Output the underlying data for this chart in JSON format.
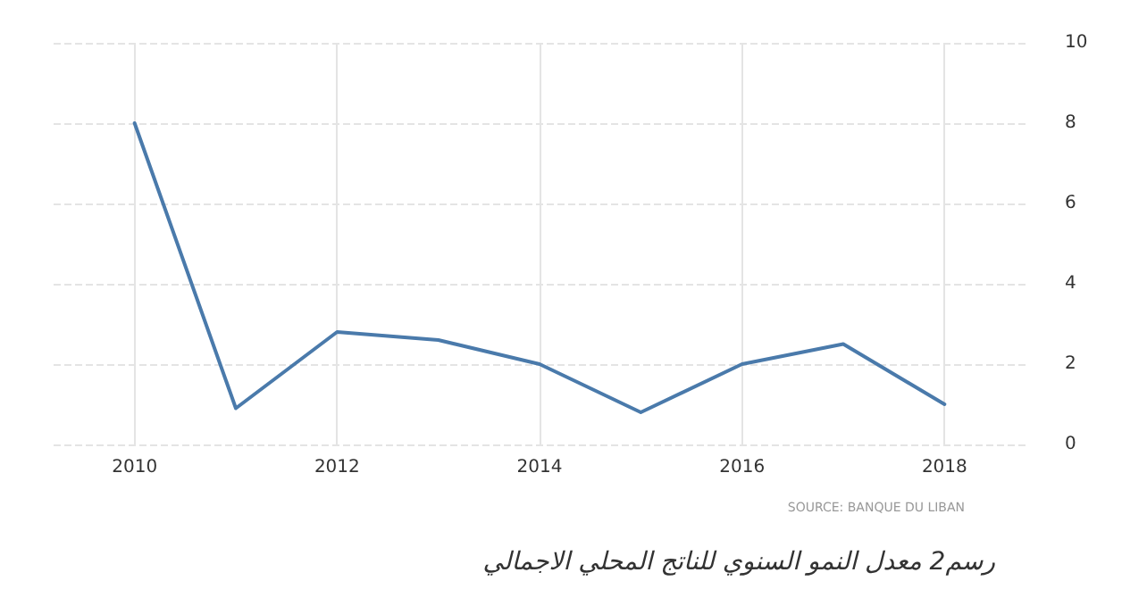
{
  "chart_data": {
    "type": "line",
    "x": [
      2010,
      2011,
      2012,
      2013,
      2014,
      2015,
      2016,
      2017,
      2018
    ],
    "series": [
      {
        "color": "#4a7aab",
        "values": [
          8.0,
          0.9,
          2.8,
          2.6,
          2.0,
          0.8,
          2.0,
          2.5,
          1.0
        ]
      }
    ],
    "xlim": [
      2009.2,
      2018.8
    ],
    "xticks": [
      2010,
      2012,
      2014,
      2016,
      2018
    ],
    "ylim": [
      0,
      10
    ],
    "yticks": [
      0,
      2,
      4,
      6,
      8,
      10
    ],
    "grid": true,
    "marker": "none",
    "line_style": "solid",
    "annotations": [
      "SOURCE: BANQUE DU LIBAN",
      "رسم2 معدل النمو السنوي للناتج المحلي الاجمالي"
    ]
  }
}
